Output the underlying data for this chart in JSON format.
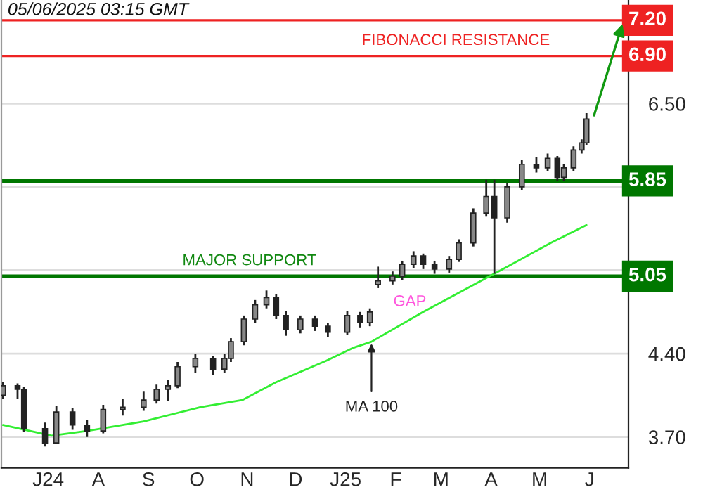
{
  "chart_data": {
    "type": "candlestick",
    "x": [
      "2024-06-03",
      "2024-06-12",
      "2024-06-16",
      "2024-06-29",
      "2024-07-06",
      "2024-07-16",
      "2024-07-25",
      "2024-08-04",
      "2024-08-16",
      "2024-08-29",
      "2024-09-06",
      "2024-09-13",
      "2024-09-19",
      "2024-09-30",
      "2024-10-11",
      "2024-10-18",
      "2024-10-22",
      "2024-10-30",
      "2024-11-06",
      "2024-11-13",
      "2024-11-19",
      "2024-11-25",
      "2024-12-04",
      "2024-12-13",
      "2024-12-21",
      "2025-01-02",
      "2025-01-10",
      "2025-01-16",
      "2025-01-21",
      "2025-01-30",
      "2025-02-05",
      "2025-02-12",
      "2025-02-18",
      "2025-02-25",
      "2025-03-06",
      "2025-03-12",
      "2025-03-21",
      "2025-03-29",
      "2025-04-03",
      "2025-04-11",
      "2025-04-20",
      "2025-04-29",
      "2025-05-06",
      "2025-05-12",
      "2025-05-16",
      "2025-05-22",
      "2025-05-27",
      "2025-05-30"
    ],
    "ohlc": [
      [
        4.05,
        4.16,
        4.02,
        4.13
      ],
      [
        4.13,
        4.15,
        4.02,
        4.1
      ],
      [
        4.1,
        4.12,
        3.74,
        3.77
      ],
      [
        3.77,
        3.82,
        3.62,
        3.65
      ],
      [
        3.65,
        3.96,
        3.64,
        3.91
      ],
      [
        3.91,
        3.94,
        3.76,
        3.8
      ],
      [
        3.8,
        3.84,
        3.7,
        3.75
      ],
      [
        3.75,
        3.97,
        3.73,
        3.93
      ],
      [
        3.93,
        4.02,
        3.88,
        3.95
      ],
      [
        3.95,
        4.08,
        3.92,
        4.01
      ],
      [
        4.01,
        4.14,
        3.98,
        4.1
      ],
      [
        4.1,
        4.18,
        4.0,
        4.13
      ],
      [
        4.13,
        4.33,
        4.11,
        4.29
      ],
      [
        4.29,
        4.4,
        4.24,
        4.36
      ],
      [
        4.36,
        4.38,
        4.22,
        4.27
      ],
      [
        4.27,
        4.4,
        4.24,
        4.36
      ],
      [
        4.36,
        4.53,
        4.33,
        4.5
      ],
      [
        4.5,
        4.72,
        4.47,
        4.69
      ],
      [
        4.69,
        4.85,
        4.66,
        4.81
      ],
      [
        4.81,
        4.93,
        4.78,
        4.87
      ],
      [
        4.87,
        4.9,
        4.69,
        4.72
      ],
      [
        4.72,
        4.76,
        4.55,
        4.6
      ],
      [
        4.6,
        4.72,
        4.57,
        4.69
      ],
      [
        4.69,
        4.72,
        4.59,
        4.63
      ],
      [
        4.63,
        4.66,
        4.54,
        4.58
      ],
      [
        4.58,
        4.76,
        4.56,
        4.72
      ],
      [
        4.72,
        4.75,
        4.62,
        4.66
      ],
      [
        4.66,
        4.78,
        4.63,
        4.75
      ],
      [
        4.98,
        5.13,
        4.95,
        5.01
      ],
      [
        5.01,
        5.09,
        4.98,
        5.05
      ],
      [
        5.05,
        5.18,
        5.02,
        5.15
      ],
      [
        5.15,
        5.26,
        5.12,
        5.22
      ],
      [
        5.22,
        5.24,
        5.11,
        5.15
      ],
      [
        5.15,
        5.18,
        5.07,
        5.11
      ],
      [
        5.11,
        5.22,
        5.08,
        5.19
      ],
      [
        5.19,
        5.36,
        5.17,
        5.33
      ],
      [
        5.33,
        5.62,
        5.3,
        5.58
      ],
      [
        5.58,
        5.86,
        5.55,
        5.72
      ],
      [
        5.72,
        5.86,
        5.07,
        5.54
      ],
      [
        5.54,
        5.83,
        5.5,
        5.8
      ],
      [
        5.8,
        6.03,
        5.77,
        5.99
      ],
      [
        5.99,
        6.05,
        5.92,
        5.96
      ],
      [
        5.96,
        6.08,
        5.93,
        6.04
      ],
      [
        6.04,
        6.06,
        5.85,
        5.88
      ],
      [
        5.88,
        5.99,
        5.85,
        5.96
      ],
      [
        5.96,
        6.14,
        5.93,
        6.11
      ],
      [
        6.11,
        6.2,
        6.08,
        6.17
      ],
      [
        6.17,
        6.42,
        6.15,
        6.37
      ]
    ],
    "series": [
      {
        "type": "line",
        "color": "#33ee33",
        "x": [
          "2024-06-03",
          "2024-07-03",
          "2024-07-25",
          "2024-08-29",
          "2024-10-03",
          "2024-10-29",
          "2024-11-19",
          "2024-12-20",
          "2025-01-06",
          "2025-01-17",
          "2025-02-18",
          "2025-04-11",
          "2025-05-08",
          "2025-05-30"
        ],
        "values": [
          3.8,
          3.71,
          3.75,
          3.83,
          3.95,
          4.01,
          4.16,
          4.34,
          4.45,
          4.5,
          4.75,
          5.13,
          5.33,
          5.48
        ]
      }
    ],
    "xlim": [
      "2024-06-02",
      "2025-06-25"
    ],
    "xticks": [
      {
        "value": "2024-07-01",
        "label": "J24"
      },
      {
        "value": "2024-08-01",
        "label": "A"
      },
      {
        "value": "2024-09-01",
        "label": "S"
      },
      {
        "value": "2024-10-01",
        "label": "O"
      },
      {
        "value": "2024-11-01",
        "label": "N"
      },
      {
        "value": "2024-12-01",
        "label": "D"
      },
      {
        "value": "2025-01-01",
        "label": "J25"
      },
      {
        "value": "2025-02-01",
        "label": "F"
      },
      {
        "value": "2025-03-01",
        "label": "M"
      },
      {
        "value": "2025-04-01",
        "label": "A"
      },
      {
        "value": "2025-05-01",
        "label": "M"
      },
      {
        "value": "2025-06-01",
        "label": "J"
      }
    ],
    "ylim": [
      3.44,
      7.37
    ],
    "yticks": [
      {
        "value": 3.7,
        "label": "3.70"
      },
      {
        "value": 4.4,
        "label": "4.40"
      },
      {
        "value": 5.1,
        "label": null
      },
      {
        "value": 5.8,
        "label": null
      },
      {
        "value": 6.5,
        "label": "6.50"
      }
    ],
    "grid": "y",
    "ref_lines": [
      {
        "axis": "y",
        "value": 7.2,
        "label": "7.20",
        "color": "#ee2222"
      },
      {
        "axis": "y",
        "value": 6.9,
        "label": "6.90",
        "color": "#ee2222"
      },
      {
        "axis": "y",
        "value": 5.85,
        "label": "5.85",
        "color": "#007700"
      },
      {
        "axis": "y",
        "value": 5.05,
        "label": "5.05",
        "color": "#007700"
      }
    ],
    "annotations": [
      "05/06/2025 03:15 GMT",
      {
        "text": "FIBONACCI RESISTANCE",
        "x": "2025-01-11",
        "y": 6.9
      },
      {
        "text": "MAJOR SUPPORT",
        "x": "2024-09-22",
        "y": 5.05
      },
      "GAP",
      {
        "text": "MA 100",
        "x": "2025-01-17",
        "y": 4.5
      }
    ]
  }
}
